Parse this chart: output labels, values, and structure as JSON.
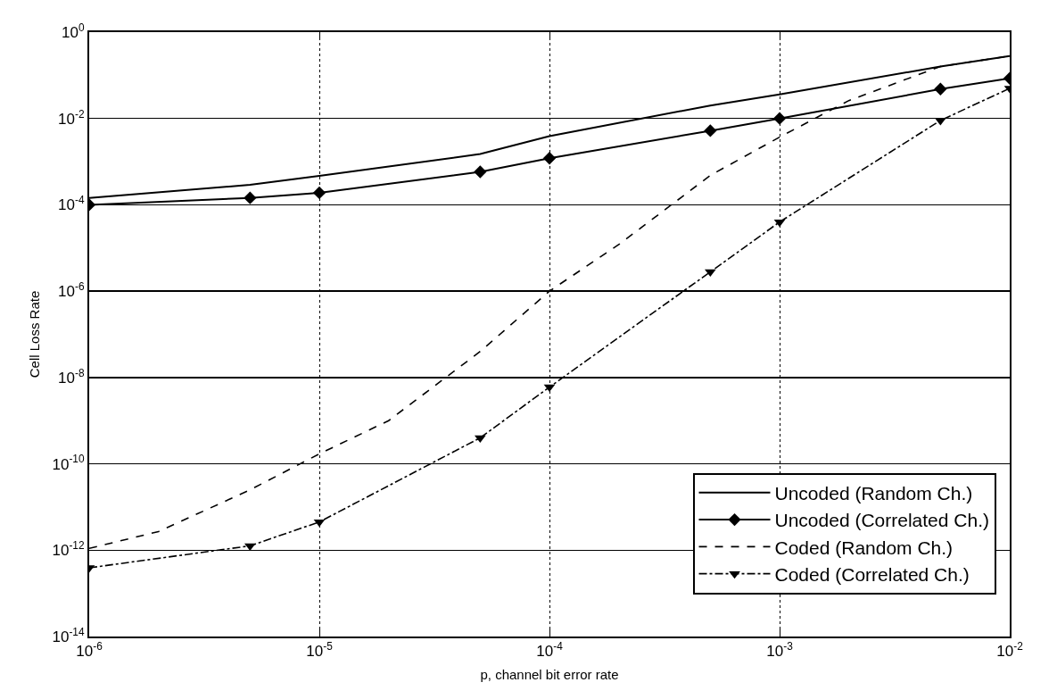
{
  "chart_data": {
    "type": "line",
    "xlabel": "p, channel bit error rate",
    "ylabel": "Cell Loss Rate",
    "x": [
      1e-06,
      5e-06,
      1e-05,
      5e-05,
      0.0001,
      0.0005,
      0.001,
      0.005,
      0.01
    ],
    "series": [
      {
        "name": "Uncoded (Random Ch.)",
        "color": "#000000",
        "line_style": "solid",
        "marker": "none",
        "values": [
          0.000145,
          0.00029,
          0.00047,
          0.0015,
          0.0039,
          0.02,
          0.036,
          0.16,
          0.28
        ]
      },
      {
        "name": "Uncoded (Correlated Ch.)",
        "color": "#000000",
        "line_style": "solid",
        "marker": "diamond",
        "values": [
          0.0001,
          0.000145,
          0.00019,
          0.00058,
          0.0012,
          0.0052,
          0.01,
          0.048,
          0.085
        ]
      },
      {
        "name": "Coded (Random Ch.)",
        "color": "#000000",
        "line_style": "dashed",
        "marker": "none",
        "x": [
          1e-06,
          2e-06,
          5e-06,
          1e-05,
          2e-05,
          5e-05,
          0.0001,
          0.0002,
          0.0005,
          0.001,
          0.002,
          0.005,
          0.01
        ],
        "values": [
          1.1e-12,
          2.7e-12,
          2.5e-11,
          1.7e-10,
          1e-09,
          4e-08,
          1e-06,
          1.2e-05,
          0.00048,
          0.0037,
          0.026,
          0.16,
          0.28
        ]
      },
      {
        "name": "Coded (Correlated Ch.)",
        "color": "#000000",
        "line_style": "dashed",
        "marker": "triangle",
        "values": [
          3.9e-13,
          1.26e-12,
          4.5e-12,
          4e-10,
          6e-09,
          2.8e-06,
          4e-05,
          0.009,
          0.05
        ]
      }
    ],
    "log": "xy",
    "xlim": [
      1e-06,
      0.01
    ],
    "ylim": [
      1e-14,
      1
    ],
    "xticks": [
      {
        "value": 1e-06,
        "label": "10$^{-6}$"
      },
      {
        "value": 1e-05,
        "label": "10$^{-5}$"
      },
      {
        "value": 0.0001,
        "label": "10$^{-4}$"
      },
      {
        "value": 0.001,
        "label": "10$^{-3}$"
      },
      {
        "value": 0.01,
        "label": "10$^{-2}$"
      }
    ],
    "yticks": [
      {
        "value": 1e-14,
        "label": "10$^{-14}$"
      },
      {
        "value": 1e-12,
        "label": "10$^{-12}$"
      },
      {
        "value": 1e-10,
        "label": "10$^{-10}$"
      },
      {
        "value": 1e-08,
        "label": "10$^{-8}$"
      },
      {
        "value": 1e-06,
        "label": "10$^{-6}$"
      },
      {
        "value": 0.0001,
        "label": "10$^{-4}$"
      },
      {
        "value": 0.01,
        "label": "10$^{-2}$"
      },
      {
        "value": 1,
        "label": "10$^{0}$"
      }
    ],
    "grid": true,
    "legend": "bottom right"
  }
}
